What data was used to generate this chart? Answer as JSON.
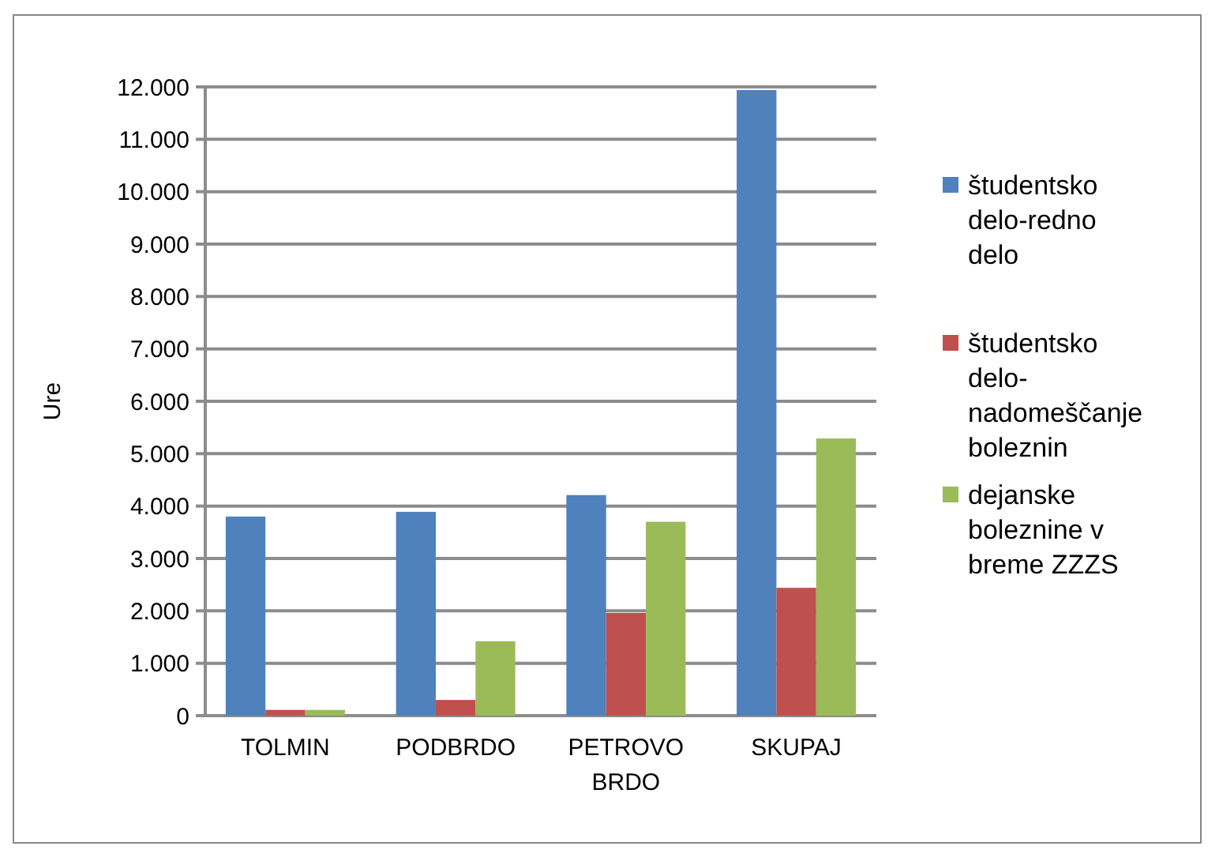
{
  "chart_data": {
    "type": "bar",
    "ylabel": "Ure",
    "categories": [
      "TOLMIN",
      "PODBRDO",
      "PETROVO BRDO",
      "SKUPAJ"
    ],
    "series": [
      {
        "name": "študentsko delo-redno delo",
        "color": "#4f81bd",
        "values": [
          3800,
          3890,
          4210,
          11940
        ]
      },
      {
        "name": "študentsko delo-nadomeščanje boleznin",
        "color": "#c0504d",
        "values": [
          110,
          300,
          1960,
          2440
        ]
      },
      {
        "name": "dejanske boleznine v breme ZZZS",
        "color": "#9bbb59",
        "values": [
          110,
          1420,
          3700,
          5290
        ]
      }
    ],
    "ylim": [
      0,
      12000
    ],
    "yticks": [
      {
        "value": 0,
        "label": "0"
      },
      {
        "value": 1000,
        "label": "1.000"
      },
      {
        "value": 2000,
        "label": "2.000"
      },
      {
        "value": 3000,
        "label": "3.000"
      },
      {
        "value": 4000,
        "label": "4.000"
      },
      {
        "value": 5000,
        "label": "5.000"
      },
      {
        "value": 6000,
        "label": "6.000"
      },
      {
        "value": 7000,
        "label": "7.000"
      },
      {
        "value": 8000,
        "label": "8.000"
      },
      {
        "value": 9000,
        "label": "9.000"
      },
      {
        "value": 10000,
        "label": "10.000"
      },
      {
        "value": 11000,
        "label": "11.000"
      },
      {
        "value": 12000,
        "label": "12.000"
      }
    ],
    "grid": "y",
    "legend": "right"
  }
}
